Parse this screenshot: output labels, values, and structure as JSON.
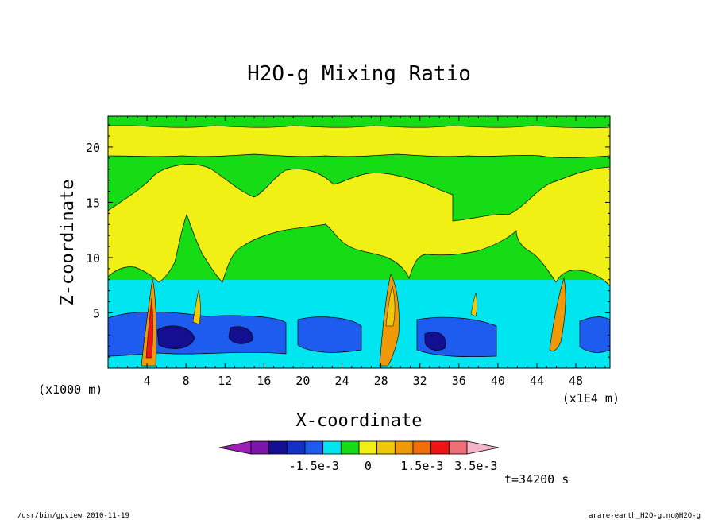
{
  "chart_data": {
    "type": "heatmap",
    "title": "H2O-g Mixing Ratio",
    "xlabel": "X-coordinate",
    "ylabel": "Z-coordinate",
    "x_unit_label": "(x1000 m)",
    "x_unit_right": "(x1E4 m)",
    "xlim": [
      0,
      51.5
    ],
    "ylim": [
      0,
      22.8
    ],
    "xticks": [
      4,
      8,
      12,
      16,
      20,
      24,
      28,
      32,
      36,
      40,
      44,
      48
    ],
    "yticks": [
      5,
      10,
      15,
      20
    ],
    "colorbar": {
      "colors": [
        "#9c1fb4",
        "#7b16a8",
        "#140f90",
        "#1430c8",
        "#1e5cf0",
        "#00e6f0",
        "#16dc16",
        "#f0f014",
        "#f0c80a",
        "#f09a0a",
        "#f06e0a",
        "#f01414",
        "#f06e78",
        "#f5b4c8"
      ],
      "labels": [
        "-1.5e-3",
        "0",
        "1.5e-3",
        "3.5e-3"
      ],
      "label_positions": [
        3.5,
        6.5,
        9.5,
        12.5
      ]
    },
    "time_label": "t=34200 s"
  },
  "footer": {
    "left": "/usr/bin/gpview  2010-11-19",
    "right": "arare-earth_H2O-g.nc@H2O-g"
  }
}
